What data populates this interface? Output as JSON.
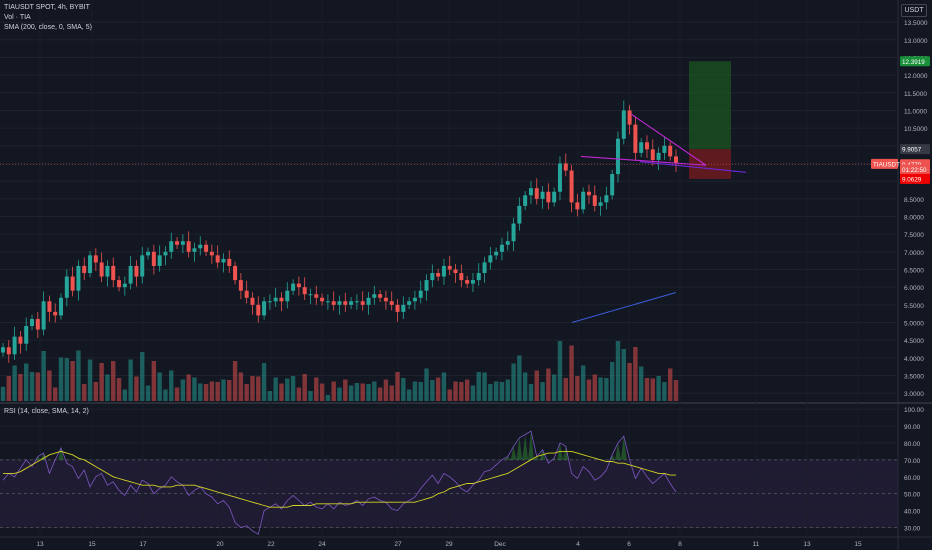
{
  "header": {
    "symbol_title": "TIAUSDT SPOT, 4h, BYBIT",
    "volume_legend": "Vol · TIA",
    "sma_legend": "SMA (200, close, 0, SMA, 5)",
    "rsi_legend": "RSI (14, close, SMA, 14, 2)",
    "currency": "USDT"
  },
  "colors": {
    "background": "#131722",
    "up": "#26a69a",
    "down": "#ef5350",
    "rsi_line": "#7e57c2",
    "rsi_ma": "#d4d424",
    "triangle": "#c026d3",
    "trendline": "#3b5bdb",
    "target_zone": "#1b5e20",
    "stop_zone": "#7f1d1d"
  },
  "chart_data": [
    {
      "type": "candlestick",
      "name": "price",
      "y_ticks": [
        "13.5000",
        "13.0000",
        "12.5000",
        "12.0000",
        "11.5000",
        "11.0000",
        "10.5000",
        "10.0000",
        "9.5000",
        "9.0000",
        "8.5000",
        "8.0000",
        "7.5000",
        "7.0000",
        "6.5000",
        "6.0000",
        "5.5000",
        "5.0000",
        "4.5000",
        "4.0000",
        "3.5000",
        "3.0000"
      ],
      "ylim": [
        2.75,
        13.9
      ],
      "x_ticks": [
        "13",
        "15",
        "17",
        "20",
        "22",
        "24",
        "27",
        "29",
        "Dec",
        "4",
        "6",
        "8",
        "11",
        "13",
        "15"
      ],
      "price_labels": [
        {
          "text": "12.3919",
          "value": 12.3919,
          "color": "#1a8f3a"
        },
        {
          "text": "9.9057",
          "value": 9.9057,
          "color": "#363a45"
        },
        {
          "text": "TIAUSDT",
          "value": 9.49,
          "color": "#ef5350"
        },
        {
          "text": "9.4779",
          "value": 9.4779,
          "color": "#ef5350"
        },
        {
          "text": "01:22:50",
          "value": 9.33,
          "color": "#ef5350"
        },
        {
          "text": "9.0629",
          "value": 9.0629,
          "color": "#ef0000"
        }
      ],
      "close_path": [
        4.3,
        4.1,
        4.6,
        4.4,
        4.9,
        5.1,
        4.8,
        5.6,
        5.3,
        5.2,
        5.7,
        6.3,
        5.9,
        6.6,
        6.4,
        6.9,
        6.7,
        6.3,
        6.6,
        6.2,
        6.0,
        6.1,
        6.6,
        6.3,
        6.9,
        7.0,
        6.6,
        6.9,
        7.0,
        7.3,
        7.2,
        7.3,
        7.0,
        7.1,
        7.2,
        7.0,
        6.9,
        6.7,
        6.8,
        6.6,
        6.2,
        5.9,
        5.7,
        5.5,
        5.2,
        5.6,
        5.6,
        5.7,
        5.6,
        5.9,
        6.1,
        6.0,
        5.8,
        5.8,
        5.7,
        5.6,
        5.6,
        5.5,
        5.6,
        5.5,
        5.6,
        5.6,
        5.5,
        5.7,
        5.8,
        5.7,
        5.6,
        5.5,
        5.3,
        5.5,
        5.6,
        5.7,
        5.9,
        6.2,
        6.4,
        6.3,
        6.6,
        6.5,
        6.4,
        6.2,
        6.1,
        6.2,
        6.4,
        6.7,
        6.9,
        7.0,
        7.2,
        7.3,
        7.8,
        8.3,
        8.6,
        8.8,
        8.5,
        8.7,
        8.4,
        8.7,
        9.5,
        9.3,
        8.4,
        8.2,
        8.7,
        8.6,
        8.3,
        8.4,
        8.6,
        9.2,
        10.2,
        11.0,
        10.6,
        9.8,
        10.1,
        9.9,
        9.6,
        9.8,
        10.0,
        9.7,
        9.5
      ],
      "volume_ylim": [
        0,
        100
      ],
      "triangle_upper": [
        [
          8.4,
          9.5
        ],
        [
          9.4,
          9.1
        ]
      ],
      "triangle_lower": [
        [
          7.8,
          9.6
        ],
        [
          9.4,
          9.1
        ]
      ],
      "target_zone": {
        "from": 9.9057,
        "to": 12.3919
      },
      "stop_zone": {
        "from": 9.0629,
        "to": 9.9057
      }
    },
    {
      "type": "line",
      "name": "RSI",
      "y_ticks": [
        "100.00",
        "90.00",
        "80.00",
        "70.00",
        "60.00",
        "50.00",
        "40.00",
        "30.00"
      ],
      "ylim": [
        25,
        103
      ],
      "levels": [
        70,
        50,
        30
      ],
      "rsi": [
        58,
        62,
        60,
        65,
        70,
        66,
        72,
        74,
        62,
        70,
        77,
        68,
        66,
        59,
        64,
        54,
        60,
        62,
        55,
        57,
        52,
        49,
        55,
        51,
        58,
        56,
        50,
        53,
        55,
        60,
        57,
        55,
        49,
        52,
        54,
        50,
        48,
        44,
        46,
        42,
        33,
        30,
        31,
        28,
        26,
        40,
        42,
        44,
        41,
        46,
        49,
        46,
        43,
        45,
        42,
        41,
        44,
        41,
        45,
        43,
        44,
        46,
        43,
        47,
        48,
        46,
        45,
        41,
        40,
        44,
        46,
        48,
        53,
        57,
        61,
        56,
        62,
        60,
        57,
        53,
        51,
        55,
        58,
        63,
        64,
        67,
        70,
        72,
        78,
        83,
        85,
        87,
        72,
        76,
        68,
        71,
        80,
        78,
        62,
        59,
        66,
        63,
        58,
        60,
        64,
        73,
        80,
        84,
        70,
        59,
        65,
        60,
        56,
        59,
        62,
        56,
        51
      ],
      "rsi_ma": [
        62,
        62,
        62,
        63,
        65,
        67,
        69,
        71,
        73,
        74,
        75,
        74,
        73,
        71,
        70,
        68,
        66,
        64,
        62,
        60,
        59,
        58,
        57,
        56,
        55,
        55,
        55,
        54,
        54,
        54,
        55,
        55,
        55,
        55,
        54,
        53,
        52,
        51,
        50,
        49,
        48,
        47,
        46,
        45,
        44,
        43,
        42,
        42,
        42,
        42,
        43,
        43,
        43,
        43,
        44,
        44,
        44,
        44,
        44,
        44,
        44,
        45,
        45,
        45,
        45,
        45,
        45,
        45,
        45,
        45,
        45,
        45,
        46,
        47,
        48,
        50,
        51,
        53,
        54,
        55,
        56,
        56,
        57,
        58,
        59,
        60,
        61,
        62,
        64,
        66,
        68,
        70,
        72,
        73,
        74,
        74,
        75,
        75,
        75,
        74,
        73,
        72,
        71,
        70,
        69,
        69,
        68,
        68,
        67,
        66,
        65,
        64,
        63,
        62,
        62,
        61,
        61
      ]
    }
  ]
}
